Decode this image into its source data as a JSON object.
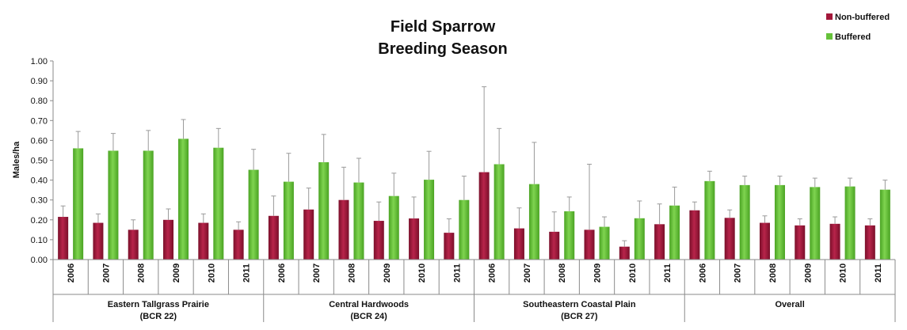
{
  "chart_data": {
    "type": "bar",
    "title": [
      "Field Sparrow",
      "Breeding Season"
    ],
    "ylabel": "Males/ha",
    "ylim": [
      0,
      1
    ],
    "yticks": [
      "0.00",
      "0.10",
      "0.20",
      "0.30",
      "0.40",
      "0.50",
      "0.60",
      "0.70",
      "0.80",
      "0.90",
      "1.00"
    ],
    "legend_position": "top-right",
    "groups": [
      {
        "label_line1": "Eastern Tallgrass Prairie",
        "label_line2": "(BCR 22)",
        "categories": [
          "2006",
          "2007",
          "2008",
          "2009",
          "2010",
          "2011"
        ]
      },
      {
        "label_line1": "Central Hardwoods",
        "label_line2": "(BCR 24)",
        "categories": [
          "2006",
          "2007",
          "2008",
          "2009",
          "2010",
          "2011"
        ]
      },
      {
        "label_line1": "Southeastern Coastal Plain",
        "label_line2": "(BCR 27)",
        "categories": [
          "2006",
          "2007",
          "2008",
          "2009",
          "2010",
          "2011"
        ]
      },
      {
        "label_line1": "Overall",
        "label_line2": "",
        "categories": [
          "2006",
          "2007",
          "2008",
          "2009",
          "2010",
          "2011"
        ]
      }
    ],
    "series": [
      {
        "name": "Non-buffered",
        "color": "#a3173a",
        "values": [
          0.215,
          0.185,
          0.15,
          0.2,
          0.185,
          0.15,
          0.22,
          0.252,
          0.3,
          0.195,
          0.207,
          0.135,
          0.44,
          0.157,
          0.14,
          0.15,
          0.065,
          0.178,
          0.248,
          0.21,
          0.185,
          0.172,
          0.18,
          0.172
        ],
        "errors": [
          0.27,
          0.23,
          0.2,
          0.255,
          0.23,
          0.19,
          0.32,
          0.36,
          0.465,
          0.29,
          0.315,
          0.205,
          0.87,
          0.26,
          0.24,
          0.48,
          0.095,
          0.28,
          0.29,
          0.25,
          0.22,
          0.205,
          0.215,
          0.205
        ]
      },
      {
        "name": "Buffered",
        "color": "#66c23a",
        "values": [
          0.56,
          0.548,
          0.548,
          0.608,
          0.563,
          0.452,
          0.392,
          0.49,
          0.388,
          0.32,
          0.402,
          0.3,
          0.48,
          0.38,
          0.243,
          0.165,
          0.208,
          0.272,
          0.395,
          0.375,
          0.375,
          0.365,
          0.368,
          0.352
        ],
        "errors": [
          0.645,
          0.635,
          0.65,
          0.705,
          0.66,
          0.555,
          0.535,
          0.63,
          0.51,
          0.435,
          0.545,
          0.42,
          0.66,
          0.59,
          0.315,
          0.215,
          0.295,
          0.365,
          0.445,
          0.42,
          0.42,
          0.41,
          0.41,
          0.4
        ]
      }
    ]
  }
}
